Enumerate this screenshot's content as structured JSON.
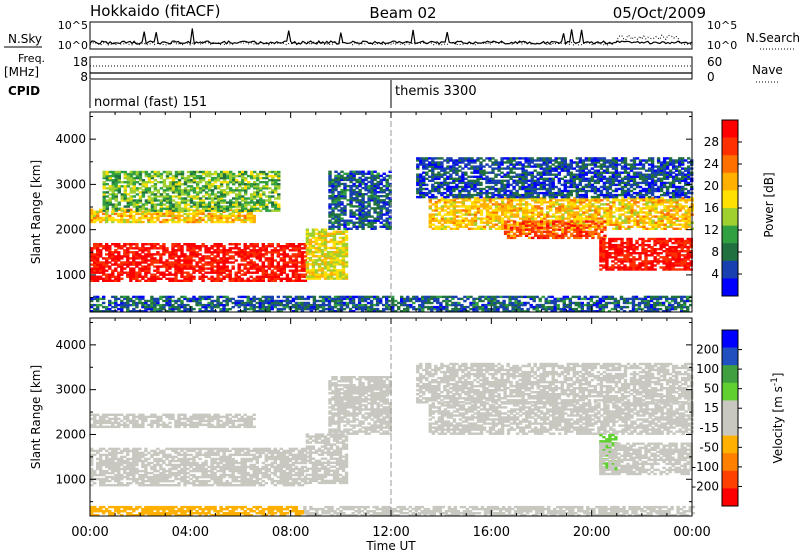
{
  "header": {
    "station": "Hokkaido (fitACF)",
    "beam": "Beam 02",
    "date": "05/Oct/2009"
  },
  "top_panels": {
    "nsky_label": "N.Sky",
    "nsearch_label": "N.Search",
    "freq_label_line1": "Freq.",
    "freq_label_line2": "[MHz]",
    "nave_label": "Nave",
    "cpid_label": "CPID",
    "count_ticks_left": [
      "10^5",
      "10^0"
    ],
    "count_ticks_right": [
      "10^5",
      "10^0"
    ],
    "freq_ticks": [
      "18",
      "8"
    ],
    "nave_ticks": [
      "60",
      "0"
    ],
    "cpid_segments": [
      {
        "start_hour": 0.0,
        "label": "normal (fast) 151"
      },
      {
        "start_hour": 12.0,
        "label": "themis 3300"
      }
    ]
  },
  "chart_data": [
    {
      "type": "heatmap",
      "name": "power",
      "ylabel": "Slant Range [km]",
      "ylim": [
        180,
        4600
      ],
      "yticks": [
        1000,
        2000,
        3000,
        4000
      ],
      "xlim": [
        0,
        24
      ],
      "xticks": [
        "00:00",
        "04:00",
        "08:00",
        "12:00",
        "16:00",
        "20:00",
        "00:00"
      ],
      "colorbar": {
        "label": "Power [dB]",
        "ticks": [
          "4",
          "8",
          "12",
          "16",
          "20",
          "24",
          "28"
        ],
        "range": [
          0,
          30
        ],
        "colors": [
          "#0000ff",
          "#1840b0",
          "#207040",
          "#30a040",
          "#a0d030",
          "#ffe000",
          "#ffb000",
          "#ff7000",
          "#ff3000",
          "#ff0000"
        ]
      },
      "regions": [
        {
          "t": [
            0.0,
            8.6
          ],
          "r": [
            850,
            1700
          ],
          "power": 28
        },
        {
          "t": [
            8.6,
            10.2
          ],
          "r": [
            900,
            2000
          ],
          "power": 16
        },
        {
          "t": [
            0.0,
            6.5
          ],
          "r": [
            2150,
            2450
          ],
          "power": 18
        },
        {
          "t": [
            0.5,
            7.5
          ],
          "r": [
            2400,
            3300
          ],
          "power": 12
        },
        {
          "t": [
            9.5,
            12.0
          ],
          "r": [
            2000,
            3300
          ],
          "power": 6
        },
        {
          "t": [
            13.5,
            24.0
          ],
          "r": [
            2000,
            2700
          ],
          "power": 18
        },
        {
          "t": [
            16.5,
            20.5
          ],
          "r": [
            1800,
            2200
          ],
          "power": 24
        },
        {
          "t": [
            20.3,
            24.0
          ],
          "r": [
            1100,
            1800
          ],
          "power": 28
        },
        {
          "t": [
            13.0,
            24.0
          ],
          "r": [
            2700,
            3600
          ],
          "power": 5
        },
        {
          "t": [
            0.0,
            24.0
          ],
          "r": [
            180,
            500
          ],
          "power": 6
        }
      ]
    },
    {
      "type": "heatmap",
      "name": "velocity",
      "ylabel": "Slant Range [km]",
      "ylim": [
        180,
        4600
      ],
      "yticks": [
        1000,
        2000,
        3000,
        4000
      ],
      "xlim": [
        0,
        24
      ],
      "xlabel": "Time UT",
      "xticks": [
        "00:00",
        "04:00",
        "08:00",
        "12:00",
        "16:00",
        "20:00",
        "00:00"
      ],
      "colorbar": {
        "label": "Velocity [m s^-1]",
        "ticks": [
          "200",
          "100",
          "50",
          "15",
          "-15",
          "-50",
          "-100",
          "-200"
        ],
        "range": [
          -250,
          250
        ],
        "colors": [
          "#0000ff",
          "#2050c0",
          "#40a040",
          "#60d030",
          "#c8c8c0",
          "#c8c8c0",
          "#ffb000",
          "#ff8000",
          "#ff4000",
          "#ff0000"
        ]
      },
      "regions": [
        {
          "t": [
            0.0,
            8.6
          ],
          "r": [
            850,
            1700
          ],
          "velocity": 0
        },
        {
          "t": [
            8.6,
            10.2
          ],
          "r": [
            900,
            2000
          ],
          "velocity": -20
        },
        {
          "t": [
            0.0,
            6.5
          ],
          "r": [
            2150,
            2450
          ],
          "velocity": 0
        },
        {
          "t": [
            9.5,
            12.0
          ],
          "r": [
            2000,
            3300
          ],
          "velocity": 0
        },
        {
          "t": [
            13.5,
            24.0
          ],
          "r": [
            2000,
            2700
          ],
          "velocity": 0
        },
        {
          "t": [
            20.3,
            21.0
          ],
          "r": [
            1200,
            2000
          ],
          "velocity": 60
        },
        {
          "t": [
            20.3,
            24.0
          ],
          "r": [
            1100,
            1800
          ],
          "velocity": 0
        },
        {
          "t": [
            13.0,
            24.0
          ],
          "r": [
            2700,
            3600
          ],
          "velocity": -10
        },
        {
          "t": [
            8.5,
            24.0
          ],
          "r": [
            180,
            400
          ],
          "velocity": 40
        },
        {
          "t": [
            0.0,
            8.5
          ],
          "r": [
            180,
            400
          ],
          "velocity": -80
        }
      ]
    }
  ]
}
